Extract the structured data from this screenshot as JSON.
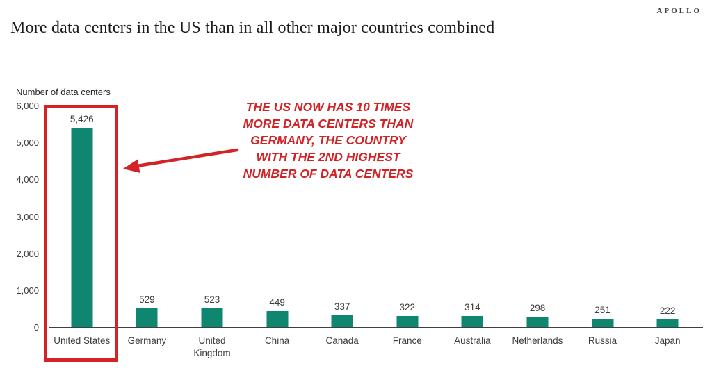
{
  "header": {
    "brand": "APOLLO",
    "title": "More data centers in the US than in all other major countries combined"
  },
  "chart_data": {
    "type": "bar",
    "title": "More data centers in the US than in all other major countries combined",
    "ylabel": "Number of data centers",
    "xlabel": "",
    "ylim": [
      0,
      6000
    ],
    "ytick_step": 1000,
    "ytick_labels": [
      "6,000",
      "5,000",
      "4,000",
      "3,000",
      "2,000",
      "1,000",
      "0"
    ],
    "categories": [
      "United States",
      "Germany",
      "United Kingdom",
      "China",
      "Canada",
      "France",
      "Australia",
      "Netherlands",
      "Russia",
      "Japan"
    ],
    "categories_display": [
      "United States",
      "Germany",
      "United\nKingdom",
      "China",
      "Canada",
      "France",
      "Australia",
      "Netherlands",
      "Russia",
      "Japan"
    ],
    "values": [
      5426,
      529,
      523,
      449,
      337,
      322,
      314,
      298,
      251,
      222
    ],
    "value_labels": [
      "5,426",
      "529",
      "523",
      "449",
      "337",
      "322",
      "314",
      "298",
      "251",
      "222"
    ],
    "bar_color": "#0e8670",
    "axis_color": "#3f3f3f",
    "grid": false,
    "legend": false
  },
  "annotation": {
    "lines": [
      "THE US NOW HAS 10 TIMES",
      "MORE DATA CENTERS THAN",
      "GERMANY, THE COUNTRY",
      "WITH THE 2ND HIGHEST",
      "NUMBER OF DATA CENTERS"
    ],
    "accent_color": "#d22427",
    "highlighted_category": "United States"
  }
}
